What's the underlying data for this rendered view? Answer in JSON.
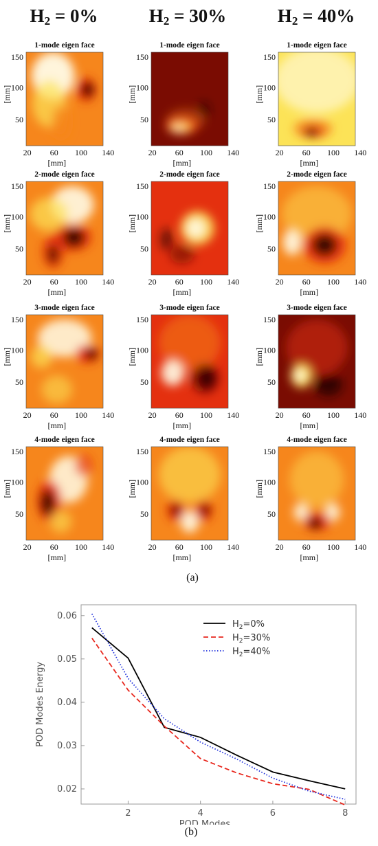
{
  "column_headers": [
    {
      "prefix": "H",
      "sub": "2",
      "suffix": " = 0%"
    },
    {
      "prefix": "H",
      "sub": "2",
      "suffix": " = 30%"
    },
    {
      "prefix": "H",
      "sub": "2",
      "suffix": " = 40%"
    }
  ],
  "panel_titles": [
    "1-mode eigen face",
    "2-mode eigen face",
    "3-mode eigen face",
    "4-mode eigen face"
  ],
  "axis_unit": "[mm]",
  "heatmap_xticks": [
    "20",
    "60",
    "100",
    "140"
  ],
  "heatmap_yticks": [
    "150",
    "100",
    "50"
  ],
  "heatmap_palettes": {
    "dark_red": "#7a0c02",
    "red": "#e4300f",
    "orange": "#f6861c",
    "yellow": "#fce357",
    "white": "#fffbe6",
    "black": "#1e0200"
  },
  "caption_a": "(a)",
  "caption_b": "(b)",
  "chart_data": {
    "type": "line",
    "xlabel": "POD Modes",
    "ylabel": "POD Modes Energy",
    "xlim": [
      0.7,
      8.3
    ],
    "ylim": [
      0.0165,
      0.0625
    ],
    "xticks": [
      2,
      4,
      6,
      8
    ],
    "yticks": [
      0.02,
      0.03,
      0.04,
      0.05,
      0.06
    ],
    "legend_position": "top-right",
    "x": [
      1,
      2,
      3,
      4,
      5,
      6,
      7,
      8
    ],
    "series": [
      {
        "name": "H2=0%",
        "label_prefix": "H",
        "label_sub": "2",
        "label_suffix": "=0%",
        "color": "#000000",
        "dash": "solid",
        "values": [
          0.0572,
          0.0502,
          0.0342,
          0.0319,
          0.0278,
          0.0239,
          0.0219,
          0.02
        ]
      },
      {
        "name": "H2=30%",
        "label_prefix": "H",
        "label_sub": "2",
        "label_suffix": "=30%",
        "color": "#e8261c",
        "dash": "dashed",
        "values": [
          0.0548,
          0.0428,
          0.0345,
          0.027,
          0.0237,
          0.0212,
          0.0199,
          0.0163
        ]
      },
      {
        "name": "H2=40%",
        "label_prefix": "H",
        "label_sub": "2",
        "label_suffix": "=40%",
        "color": "#2233dd",
        "dash": "dotted",
        "values": [
          0.0604,
          0.0455,
          0.0362,
          0.0308,
          0.0269,
          0.0225,
          0.0195,
          0.0176
        ]
      }
    ]
  }
}
